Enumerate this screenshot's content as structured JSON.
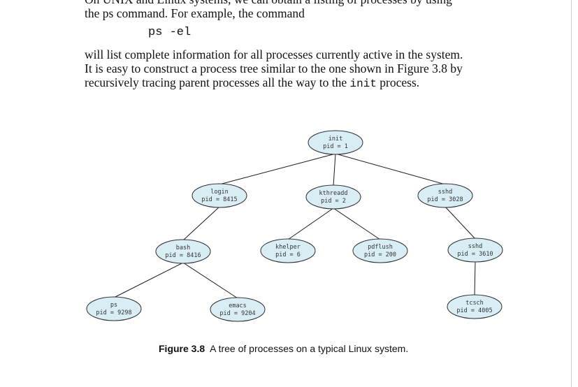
{
  "text": {
    "line0": "On UNIX and Linux systems, we can obtain a listing of processes by using",
    "line1_pre": "the ",
    "line1_code": "ps",
    "line1_post": " command. For example, the command",
    "command": "ps -el",
    "line2": "will list complete information for all processes currently active in the system.",
    "line3": "It is easy to construct a process tree similar to the one shown in Figure 3.8 by",
    "line4_pre": "recursively tracing parent processes all the way to the ",
    "line4_code": "init",
    "line4_post": " process."
  },
  "figure": {
    "node_fill": "#d8eef4",
    "node_stroke": "#2b2b2b",
    "nodes": [
      {
        "id": "init",
        "name": "init",
        "pid": "pid = 1"
      },
      {
        "id": "login",
        "name": "login",
        "pid": "pid = 8415"
      },
      {
        "id": "kthreadd",
        "name": "kthreadd",
        "pid": "pid = 2"
      },
      {
        "id": "sshd1",
        "name": "sshd",
        "pid": "pid = 3028"
      },
      {
        "id": "bash",
        "name": "bash",
        "pid": "pid = 8416"
      },
      {
        "id": "khelper",
        "name": "khelper",
        "pid": "pid = 6"
      },
      {
        "id": "pdflush",
        "name": "pdflush",
        "pid": "pid = 200"
      },
      {
        "id": "sshd2",
        "name": "sshd",
        "pid": "pid = 3610"
      },
      {
        "id": "ps",
        "name": "ps",
        "pid": "pid = 9298"
      },
      {
        "id": "emacs",
        "name": "emacs",
        "pid": "pid = 9204"
      },
      {
        "id": "tcsch",
        "name": "tcsch",
        "pid": "pid = 4005"
      }
    ],
    "edges": [
      [
        "init",
        "login"
      ],
      [
        "init",
        "kthreadd"
      ],
      [
        "init",
        "sshd1"
      ],
      [
        "login",
        "bash"
      ],
      [
        "kthreadd",
        "khelper"
      ],
      [
        "kthreadd",
        "pdflush"
      ],
      [
        "sshd1",
        "sshd2"
      ],
      [
        "bash",
        "ps"
      ],
      [
        "bash",
        "emacs"
      ],
      [
        "sshd2",
        "tcsch"
      ]
    ],
    "caption_label": "Figure 3.8",
    "caption_text": "A tree of processes on a typical Linux system."
  }
}
